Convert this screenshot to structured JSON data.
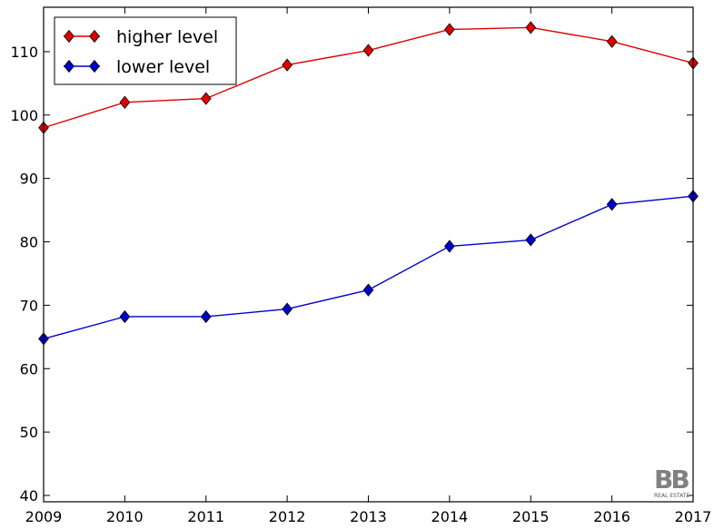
{
  "chart_data": {
    "type": "line",
    "title": "",
    "xlabel": "",
    "ylabel": "",
    "x": [
      2009,
      2010,
      2011,
      2012,
      2013,
      2014,
      2015,
      2016,
      2017
    ],
    "xlim": [
      2009,
      2017
    ],
    "ylim": [
      39,
      117
    ],
    "xticks": [
      2009,
      2010,
      2011,
      2012,
      2013,
      2014,
      2015,
      2016,
      2017
    ],
    "yticks": [
      40,
      50,
      60,
      70,
      80,
      90,
      100,
      110
    ],
    "grid": false,
    "legend_position": "top-left",
    "series": [
      {
        "name": "higher level",
        "color": "#dd0000",
        "marker": "diamond",
        "values": [
          98.0,
          102.0,
          102.6,
          107.9,
          110.2,
          113.5,
          113.8,
          111.6,
          108.2
        ]
      },
      {
        "name": "lower level",
        "color": "#0000cc",
        "marker": "diamond",
        "values": [
          64.7,
          68.2,
          68.2,
          69.4,
          72.4,
          79.3,
          80.3,
          85.9,
          87.2
        ]
      }
    ]
  },
  "watermark": {
    "logo_text": "BB",
    "caption": "REAL ESTATE",
    "colors": [
      "#808080",
      "#e0502a"
    ]
  }
}
